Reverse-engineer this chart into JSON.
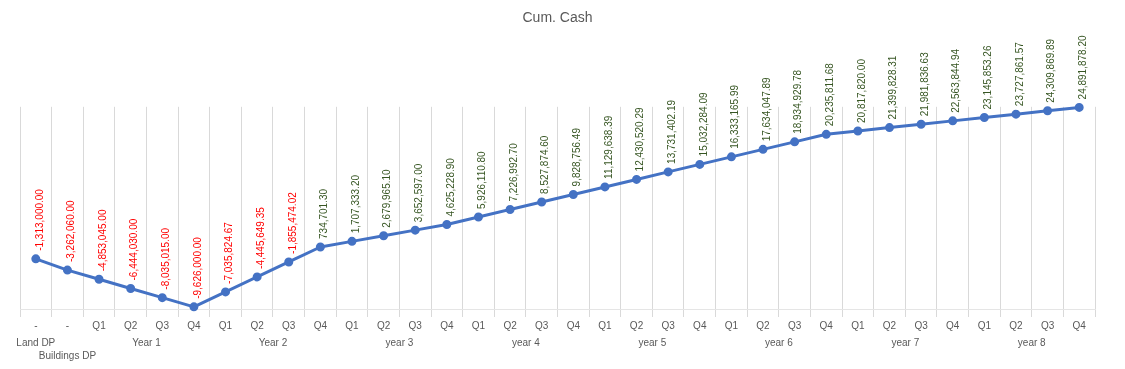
{
  "chart_data": {
    "type": "line",
    "title": "Cum. Cash",
    "categories": [
      "-",
      "-",
      "Q1",
      "Q2",
      "Q3",
      "Q4",
      "Q1",
      "Q2",
      "Q3",
      "Q4",
      "Q1",
      "Q2",
      "Q3",
      "Q4",
      "Q1",
      "Q2",
      "Q3",
      "Q4",
      "Q1",
      "Q2",
      "Q3",
      "Q4",
      "Q1",
      "Q2",
      "Q3",
      "Q4",
      "Q1",
      "Q2",
      "Q3",
      "Q4",
      "Q1",
      "Q2",
      "Q3",
      "Q4"
    ],
    "series": [
      {
        "color": "#4472c4",
        "values": [
          -1313000,
          -3262060,
          -4853045,
          -6444030,
          -8035015,
          -9626000,
          -7035824.67,
          -4445649.35,
          -1855474.02,
          734701.3,
          1707333.2,
          2679965.1,
          3652597.0,
          4625228.9,
          5926110.8,
          7226992.7,
          8527874.6,
          9828756.49,
          11129638.39,
          12430520.29,
          13731402.19,
          15032284.09,
          16333165.99,
          17634047.89,
          18934929.78,
          20235811.68,
          20817820.0,
          21399828.31,
          21981836.63,
          22563844.94,
          23145853.26,
          23727861.57,
          24309869.89,
          24891878.2
        ],
        "value_labels": [
          "-1,313,000.00",
          "-3,262,060.00",
          "-4,853,045.00",
          "-6,444,030.00",
          "-8,035,015.00",
          "-9,626,000.00",
          "-7,035,824.67",
          "-4,445,649.35",
          "-1,855,474.02",
          "734,701.30",
          "1,707,333.20",
          "2,679,965.10",
          "3,652,597.00",
          "4,625,228.90",
          "5,926,110.80",
          "7,226,992.70",
          "8,527,874.60",
          "9,828,756.49",
          "11,129,638.39",
          "12,430,520.29",
          "13,731,402.19",
          "15,032,284.09",
          "16,333,165.99",
          "17,634,047.89",
          "18,934,929.78",
          "20,235,811.68",
          "20,817,820.00",
          "21,399,828.31",
          "21,981,836.63",
          "22,563,844.94",
          "23,145,853.26",
          "23,727,861.57",
          "24,309,869.89",
          "24,891,878.20"
        ]
      }
    ],
    "annotations": [
      "Land DP",
      "Buildings DP",
      "Year 1",
      "Year 2",
      "year 3",
      "year 4",
      "year 5",
      "year 6",
      "year 7",
      "year 8"
    ],
    "marker": "circle",
    "legend": false,
    "grid": "x"
  }
}
